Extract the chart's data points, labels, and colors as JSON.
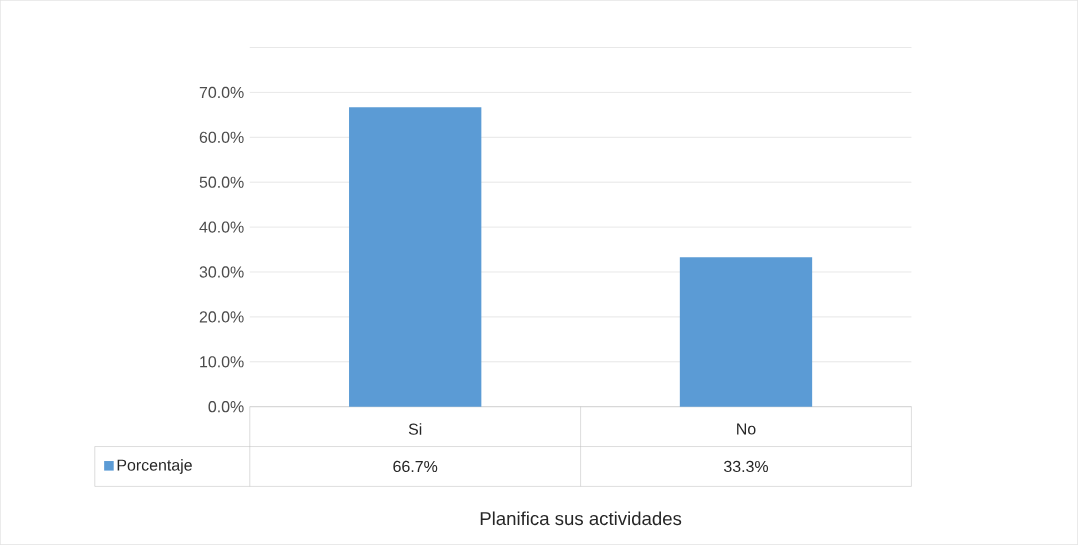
{
  "chart_data": {
    "type": "bar",
    "xlabel": "Planifica sus actividades",
    "categories": [
      "Si",
      "No"
    ],
    "series": [
      {
        "name": "Porcentaje",
        "color": "#5b9bd5",
        "values": [
          66.7,
          33.3
        ],
        "value_labels": [
          "66.7%",
          "33.3%"
        ]
      }
    ],
    "ylim": [
      0,
      80
    ],
    "yticks": [
      {
        "value": 0,
        "label": "0.0%"
      },
      {
        "value": 10,
        "label": "10.0%"
      },
      {
        "value": 20,
        "label": "20.0%"
      },
      {
        "value": 30,
        "label": "30.0%"
      },
      {
        "value": 40,
        "label": "40.0%"
      },
      {
        "value": 50,
        "label": "50.0%"
      },
      {
        "value": 60,
        "label": "60.0%"
      },
      {
        "value": 70,
        "label": "70.0%"
      },
      {
        "value": 80,
        "label": null
      }
    ],
    "grid": "y",
    "legend": "bottom left"
  }
}
